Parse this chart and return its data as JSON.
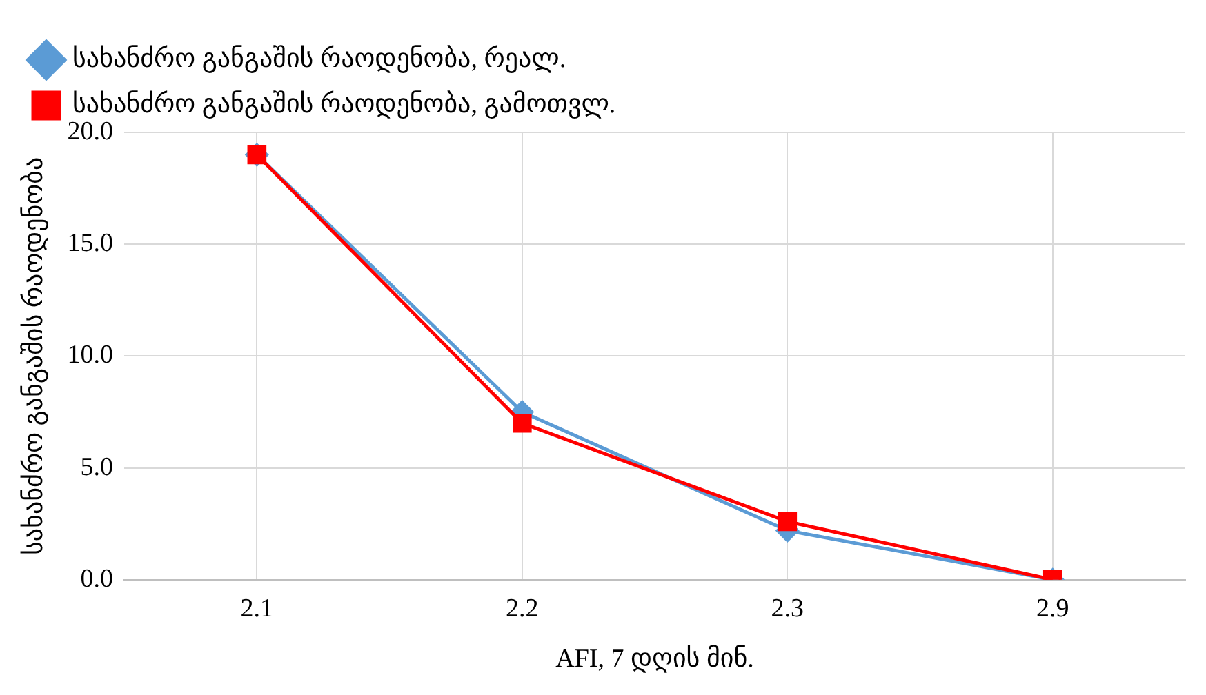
{
  "chart_data": {
    "type": "line",
    "xlabel": "AFI, 7 დღის მინ.",
    "ylabel": "სახანძრო განგაშის რაოდენობა",
    "categories": [
      "2.1",
      "2.2",
      "2.3",
      "2.9"
    ],
    "series": [
      {
        "name": "სახანძრო განგაშის რაოდენობა, რეალ.",
        "color": "#5b9bd5",
        "marker": "diamond",
        "values": [
          19.0,
          7.5,
          2.2,
          0.0
        ]
      },
      {
        "name": "სახანძრო განგაშის რაოდენობა, გამოთვლ.",
        "color": "#ff0000",
        "marker": "square",
        "values": [
          19.0,
          7.0,
          2.6,
          0.0
        ]
      }
    ],
    "ylim": [
      0,
      20
    ],
    "yticks": [
      {
        "value": 0,
        "label": "0.0"
      },
      {
        "value": 5,
        "label": "5.0"
      },
      {
        "value": 10,
        "label": "10.0"
      },
      {
        "value": 15,
        "label": "15.0"
      },
      {
        "value": 20,
        "label": "20.0"
      }
    ],
    "grid": true,
    "legend": "top",
    "line_style": "solid"
  }
}
